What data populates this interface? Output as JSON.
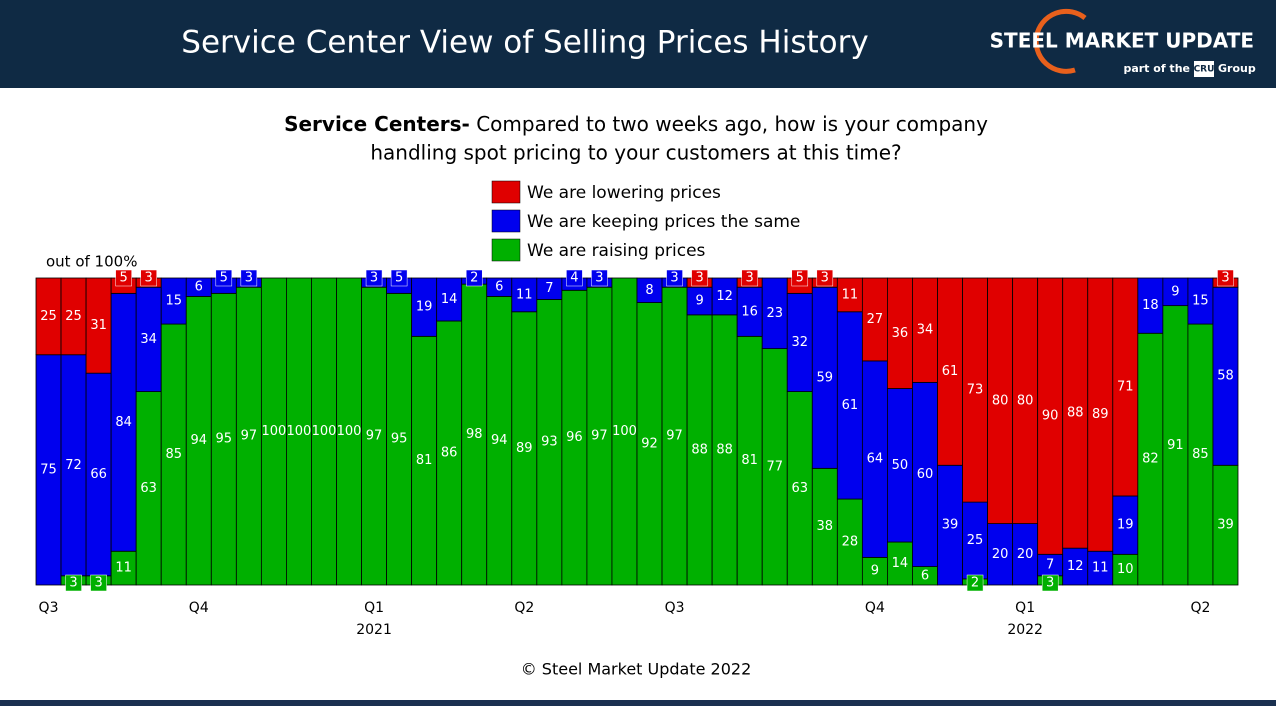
{
  "header": {
    "title": "Service Center View of Selling Prices History",
    "logo": "STEEL MARKET UPDATE",
    "tagline_pre": "part of the",
    "tagline_brand": "CRU",
    "tagline_post": "Group"
  },
  "chart_data": {
    "type": "stacked-bar",
    "subtitle": {
      "bold": "Service Centers-",
      "lines": [
        "Compared to two weeks ago, how is your company",
        "handling spot pricing to your customers at this time?"
      ]
    },
    "note": "out of 100%",
    "footer": "© Steel Market Update 2022",
    "categories": [
      "Q3",
      null,
      null,
      null,
      null,
      null,
      "Q4",
      null,
      null,
      null,
      null,
      null,
      null,
      "Q1",
      null,
      null,
      null,
      null,
      null,
      "Q2",
      null,
      null,
      null,
      null,
      null,
      "Q3",
      null,
      null,
      null,
      null,
      null,
      null,
      null,
      "Q4",
      null,
      null,
      null,
      null,
      null,
      "Q1",
      null,
      null,
      null,
      null,
      null,
      null,
      "Q2",
      null
    ],
    "category_years": [
      null,
      null,
      null,
      null,
      null,
      null,
      null,
      null,
      null,
      null,
      null,
      null,
      null,
      "2021",
      null,
      null,
      null,
      null,
      null,
      null,
      null,
      null,
      null,
      null,
      null,
      null,
      null,
      null,
      null,
      null,
      null,
      null,
      null,
      null,
      null,
      null,
      null,
      null,
      null,
      "2022",
      null,
      null,
      null,
      null,
      null,
      null,
      null,
      null
    ],
    "series": [
      {
        "name": "We are lowering prices",
        "color": "#e00000",
        "values": [
          25,
          25,
          31,
          5,
          3,
          0,
          0,
          0,
          0,
          0,
          0,
          0,
          0,
          0,
          0,
          0,
          0,
          0,
          0,
          0,
          0,
          0,
          0,
          0,
          0,
          0,
          3,
          0,
          3,
          0,
          5,
          3,
          11,
          27,
          36,
          34,
          61,
          73,
          80,
          80,
          90,
          88,
          89,
          71,
          0,
          0,
          0,
          3
        ]
      },
      {
        "name": "We are keeping prices the same",
        "color": "#0000ee",
        "values": [
          75,
          72,
          66,
          84,
          34,
          15,
          6,
          5,
          3,
          0,
          0,
          0,
          0,
          3,
          5,
          19,
          14,
          2,
          6,
          11,
          7,
          4,
          3,
          0,
          8,
          3,
          9,
          12,
          16,
          23,
          32,
          59,
          61,
          64,
          50,
          60,
          39,
          25,
          20,
          20,
          7,
          12,
          11,
          19,
          18,
          9,
          15,
          58
        ]
      },
      {
        "name": "We are raising prices",
        "color": "#00b000",
        "values": [
          0,
          3,
          3,
          11,
          63,
          85,
          94,
          95,
          97,
          100,
          100,
          100,
          100,
          97,
          95,
          81,
          86,
          98,
          94,
          89,
          93,
          96,
          97,
          100,
          92,
          97,
          88,
          88,
          81,
          77,
          63,
          38,
          28,
          9,
          14,
          6,
          0,
          2,
          0,
          0,
          3,
          0,
          0,
          10,
          82,
          91,
          85,
          39
        ]
      }
    ],
    "ylim": [
      0,
      100
    ]
  }
}
